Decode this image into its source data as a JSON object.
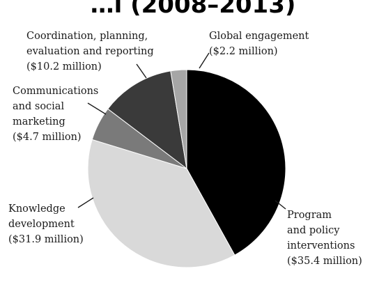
{
  "header": {
    "title_partial": "…l (2008–2013)"
  },
  "chart_data": {
    "type": "pie",
    "unit": "$ million",
    "slices": [
      {
        "label_lines": [
          "Program",
          "and policy",
          "interventions",
          "($35.4 million)"
        ],
        "category": "Program and policy interventions",
        "value": 35.4,
        "color": "#000000"
      },
      {
        "label_lines": [
          "Knowledge",
          "development",
          "($31.9 million)"
        ],
        "category": "Knowledge development",
        "value": 31.9,
        "color": "#d9d9d9"
      },
      {
        "label_lines": [
          "Communications",
          "and social",
          "marketing",
          "($4.7 million)"
        ],
        "category": "Communications and social marketing",
        "value": 4.7,
        "color": "#7a7a7a"
      },
      {
        "label_lines": [
          "Coordination, planning,",
          "evaluation and reporting",
          "($10.2 million)"
        ],
        "category": "Coordination, planning, evaluation and reporting",
        "value": 10.2,
        "color": "#3a3a3a"
      },
      {
        "label_lines": [
          "Global engagement",
          "($2.2 million)"
        ],
        "category": "Global engagement",
        "value": 2.2,
        "color": "#a6a6a6"
      }
    ]
  }
}
